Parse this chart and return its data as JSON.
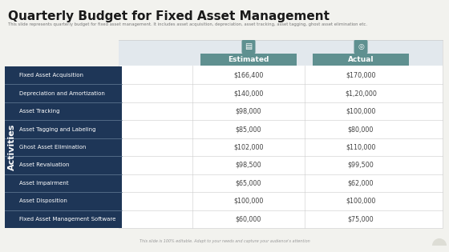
{
  "title": "Quarterly Budget for Fixed Asset Management",
  "subtitle": "This slide represents quarterly budget for fixed asset management. It includes asset acquisition, depreciation, asset tracking, asset tagging, ghost asset elimination etc.",
  "footer": "This slide is 100% editable. Adapt to your needs and capture your audience's attention",
  "activities_label": "Activities",
  "col_estimated": "Estimated",
  "col_actual": "Actual",
  "rows": [
    {
      "activity": "Fixed Asset Acquisition",
      "estimated": "$166,400",
      "actual": "$170,000"
    },
    {
      "activity": "Depreciation and Amortization",
      "estimated": "$140,000",
      "actual": "$1,20,000"
    },
    {
      "activity": "Asset Tracking",
      "estimated": "$98,000",
      "actual": "$100,000"
    },
    {
      "activity": "Asset Tagging and Labeling",
      "estimated": "$85,000",
      "actual": "$80,000"
    },
    {
      "activity": "Ghost Asset Elimination",
      "estimated": "$102,000",
      "actual": "$110,000"
    },
    {
      "activity": "Asset Revaluation",
      "estimated": "$98,500",
      "actual": "$99,500"
    },
    {
      "activity": "Asset Impairment",
      "estimated": "$65,000",
      "actual": "$62,000"
    },
    {
      "activity": "Asset Disposition",
      "estimated": "$100,000",
      "actual": "$100,000"
    },
    {
      "activity": "Fixed Asset Management Software",
      "estimated": "$60,000",
      "actual": "$75,000"
    }
  ],
  "dark_navy": "#1e3657",
  "teal_header": "#5f9090",
  "border_color": "#cccccc",
  "background": "#f2f2ee",
  "upper_bg": "#e2e8ed",
  "row_text": "#444444"
}
